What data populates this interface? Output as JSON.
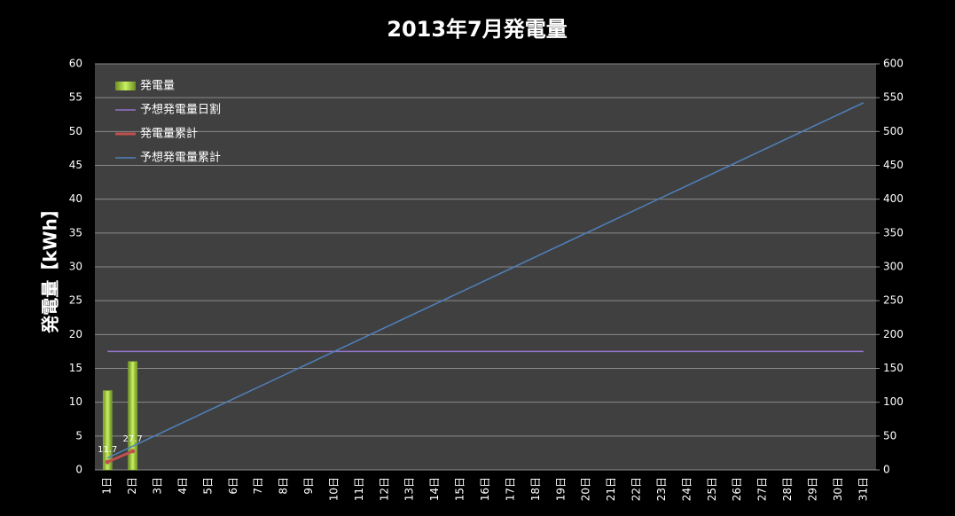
{
  "chart_data": {
    "type": "combo",
    "title": "2013年7月発電量",
    "y_label": "発電量【kWh】",
    "categories": [
      "1日",
      "2日",
      "3日",
      "4日",
      "5日",
      "6日",
      "7日",
      "8日",
      "9日",
      "10日",
      "11日",
      "12日",
      "13日",
      "14日",
      "15日",
      "16日",
      "17日",
      "18日",
      "19日",
      "20日",
      "21日",
      "22日",
      "23日",
      "24日",
      "25日",
      "26日",
      "27日",
      "28日",
      "29日",
      "30日",
      "31日"
    ],
    "series": [
      {
        "name": "発電量",
        "type": "bar",
        "color": "#9acd32",
        "axis": "y",
        "values": [
          11.7,
          16.0,
          null,
          null,
          null,
          null,
          null,
          null,
          null,
          null,
          null,
          null,
          null,
          null,
          null,
          null,
          null,
          null,
          null,
          null,
          null,
          null,
          null,
          null,
          null,
          null,
          null,
          null,
          null,
          null,
          null
        ]
      },
      {
        "name": "予想発電量日割",
        "type": "line",
        "color": "#9473c8",
        "axis": "y",
        "values": [
          17.5,
          17.5,
          17.5,
          17.5,
          17.5,
          17.5,
          17.5,
          17.5,
          17.5,
          17.5,
          17.5,
          17.5,
          17.5,
          17.5,
          17.5,
          17.5,
          17.5,
          17.5,
          17.5,
          17.5,
          17.5,
          17.5,
          17.5,
          17.5,
          17.5,
          17.5,
          17.5,
          17.5,
          17.5,
          17.5,
          17.5
        ]
      },
      {
        "name": "発電量累計",
        "type": "line",
        "color": "#c0504d",
        "axis": "y2",
        "labels": true,
        "values": [
          11.7,
          27.7,
          null,
          null,
          null,
          null,
          null,
          null,
          null,
          null,
          null,
          null,
          null,
          null,
          null,
          null,
          null,
          null,
          null,
          null,
          null,
          null,
          null,
          null,
          null,
          null,
          null,
          null,
          null,
          null,
          null
        ]
      },
      {
        "name": "予想発電量累計",
        "type": "line",
        "color": "#4f81bd",
        "axis": "y2",
        "values": [
          17.5,
          35,
          52.5,
          70,
          87.5,
          105,
          122.5,
          140,
          157.5,
          175,
          192.5,
          210,
          227.5,
          245,
          262.5,
          280,
          297.5,
          315,
          332.5,
          350,
          367.5,
          385,
          402.5,
          420,
          437.5,
          455,
          472.5,
          490,
          507.5,
          525,
          542.5
        ]
      }
    ],
    "ylim": [
      0,
      60
    ],
    "yticks": [
      0,
      5,
      10,
      15,
      20,
      25,
      30,
      35,
      40,
      45,
      50,
      55,
      60
    ],
    "y2lim": [
      0,
      600
    ],
    "y2ticks": [
      0,
      50,
      100,
      150,
      200,
      250,
      300,
      350,
      400,
      450,
      500,
      550,
      600
    ],
    "grid": true,
    "legend": "upper-left"
  }
}
